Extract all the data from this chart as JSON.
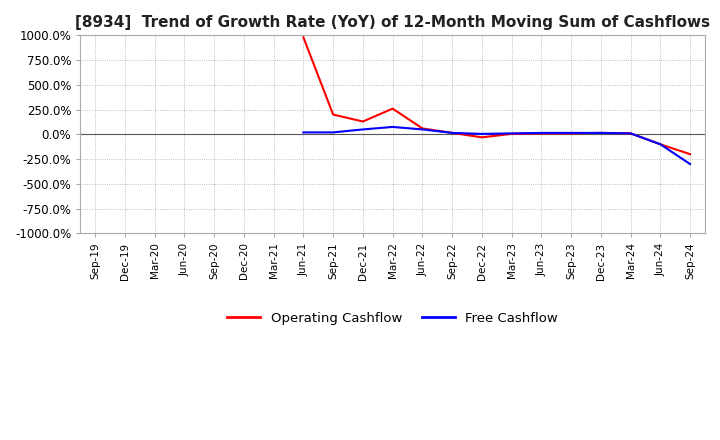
{
  "title": "[8934]  Trend of Growth Rate (YoY) of 12-Month Moving Sum of Cashflows",
  "title_fontsize": 11,
  "ylim": [
    -1000,
    1000
  ],
  "yticks": [
    -1000,
    -750,
    -500,
    -250,
    0,
    250,
    500,
    750,
    1000
  ],
  "ytick_labels": [
    "-1000.0%",
    "-750.0%",
    "-500.0%",
    "-250.0%",
    "0.0%",
    "250.0%",
    "500.0%",
    "750.0%",
    "1000.0%"
  ],
  "background_color": "#ffffff",
  "plot_bg_color": "#ffffff",
  "grid_color": "#aaaaaa",
  "operating_color": "#ff0000",
  "free_color": "#0000ff",
  "legend_labels": [
    "Operating Cashflow",
    "Free Cashflow"
  ],
  "x_dates": [
    "Sep-19",
    "Dec-19",
    "Mar-20",
    "Jun-20",
    "Sep-20",
    "Dec-20",
    "Mar-21",
    "Jun-21",
    "Sep-21",
    "Dec-21",
    "Mar-22",
    "Jun-22",
    "Sep-22",
    "Dec-22",
    "Mar-23",
    "Jun-23",
    "Sep-23",
    "Dec-23",
    "Mar-24",
    "Jun-24",
    "Sep-24"
  ],
  "operating_cf": [
    null,
    null,
    null,
    null,
    null,
    null,
    null,
    980,
    200,
    130,
    260,
    60,
    15,
    -30,
    5,
    10,
    10,
    15,
    10,
    -100,
    -200
  ],
  "free_cf": [
    null,
    null,
    null,
    null,
    null,
    null,
    null,
    20,
    20,
    50,
    75,
    50,
    15,
    5,
    10,
    15,
    15,
    15,
    10,
    -100,
    -300
  ]
}
